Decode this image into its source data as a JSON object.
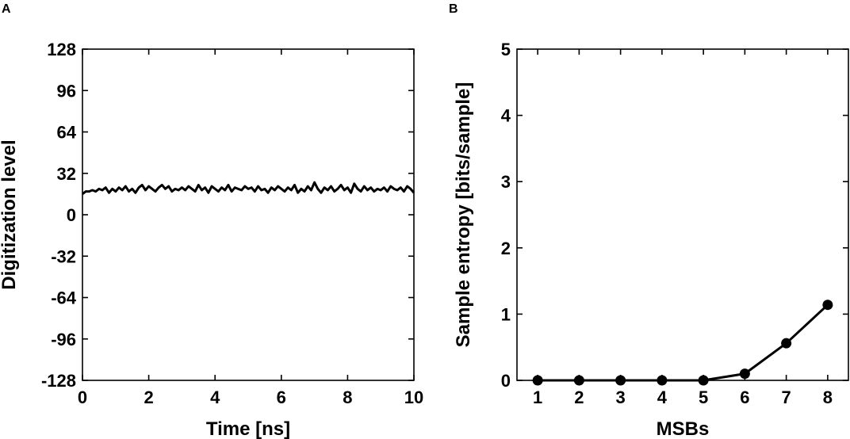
{
  "colors": {
    "ink": "#000000",
    "background": "#ffffff"
  },
  "chart_data": [
    {
      "panel": "A",
      "type": "line",
      "title": "",
      "xlabel": "Time [ns]",
      "ylabel": "Digitization level",
      "xlim": [
        0,
        10
      ],
      "ylim": [
        -128,
        128
      ],
      "xticks": [
        0,
        2,
        4,
        6,
        8,
        10
      ],
      "yticks": [
        128,
        96,
        64,
        32,
        0,
        -32,
        -64,
        -96,
        -128
      ],
      "grid": false,
      "legend": "none",
      "series": [
        {
          "x": [
            0,
            0.1,
            0.2,
            0.3,
            0.4,
            0.5,
            0.6,
            0.7,
            0.8,
            0.9,
            1.0,
            1.1,
            1.2,
            1.3,
            1.4,
            1.5,
            1.6,
            1.7,
            1.8,
            1.9,
            2.0,
            2.1,
            2.2,
            2.3,
            2.4,
            2.5,
            2.6,
            2.7,
            2.8,
            2.9,
            3.0,
            3.1,
            3.2,
            3.3,
            3.4,
            3.5,
            3.6,
            3.7,
            3.8,
            3.9,
            4.0,
            4.1,
            4.2,
            4.3,
            4.4,
            4.5,
            4.6,
            4.7,
            4.8,
            4.9,
            5.0,
            5.1,
            5.2,
            5.3,
            5.4,
            5.5,
            5.6,
            5.7,
            5.8,
            5.9,
            6.0,
            6.1,
            6.2,
            6.3,
            6.4,
            6.5,
            6.6,
            6.7,
            6.8,
            6.9,
            7.0,
            7.1,
            7.2,
            7.3,
            7.4,
            7.5,
            7.6,
            7.7,
            7.8,
            7.9,
            8.0,
            8.1,
            8.2,
            8.3,
            8.4,
            8.5,
            8.6,
            8.7,
            8.8,
            8.9,
            9.0,
            9.1,
            9.2,
            9.3,
            9.4,
            9.5,
            9.6,
            9.7,
            9.8,
            9.9,
            10.0
          ],
          "values": [
            16,
            18,
            18,
            19,
            18,
            20,
            19,
            21,
            17,
            20,
            18,
            21,
            19,
            22,
            18,
            20,
            17,
            21,
            23,
            19,
            22,
            20,
            18,
            21,
            23,
            20,
            22,
            18,
            20,
            19,
            21,
            19,
            22,
            20,
            18,
            23,
            19,
            21,
            17,
            22,
            20,
            18,
            21,
            19,
            23,
            18,
            21,
            20,
            19,
            22,
            20,
            21,
            18,
            22,
            19,
            20,
            17,
            21,
            19,
            22,
            20,
            18,
            21,
            19,
            23,
            17,
            20,
            18,
            22,
            19,
            25,
            20,
            17,
            21,
            19,
            22,
            18,
            20,
            23,
            19,
            21,
            17,
            24,
            20,
            18,
            22,
            19,
            21,
            18,
            20,
            19,
            21,
            18,
            22,
            20,
            19,
            21,
            18,
            22,
            20,
            17
          ]
        }
      ]
    },
    {
      "panel": "B",
      "type": "line",
      "title": "",
      "xlabel": "MSBs",
      "ylabel": "Sample entropy [bits/sample]",
      "xlim": [
        0.5,
        8.5
      ],
      "ylim": [
        0,
        5
      ],
      "xticks": [
        1,
        2,
        3,
        4,
        5,
        6,
        7,
        8
      ],
      "yticks": [
        5,
        4,
        3,
        2,
        1,
        0
      ],
      "grid": false,
      "legend": "none",
      "series": [
        {
          "x": [
            1,
            2,
            3,
            4,
            5,
            6,
            7,
            8
          ],
          "values": [
            0,
            0,
            0,
            0,
            0,
            0.1,
            0.56,
            1.14
          ],
          "markers": true
        }
      ]
    }
  ]
}
